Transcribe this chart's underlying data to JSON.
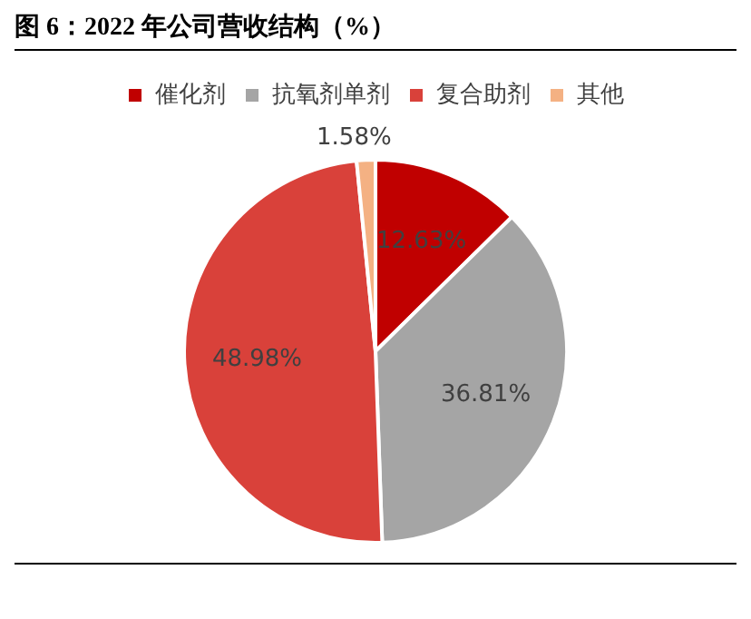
{
  "chart_data": {
    "type": "pie",
    "title": "图 6：2022 年公司营收结构（%）",
    "categories": [
      "催化剂",
      "抗氧剂单剂",
      "复合助剂",
      "其他"
    ],
    "values": [
      12.63,
      36.81,
      48.98,
      1.58
    ],
    "colors": [
      "#c00000",
      "#a5a5a5",
      "#d9413a",
      "#f4b183"
    ],
    "value_labels": [
      "12.63%",
      "36.81%",
      "48.98%",
      "1.58%"
    ],
    "legend": "top"
  }
}
